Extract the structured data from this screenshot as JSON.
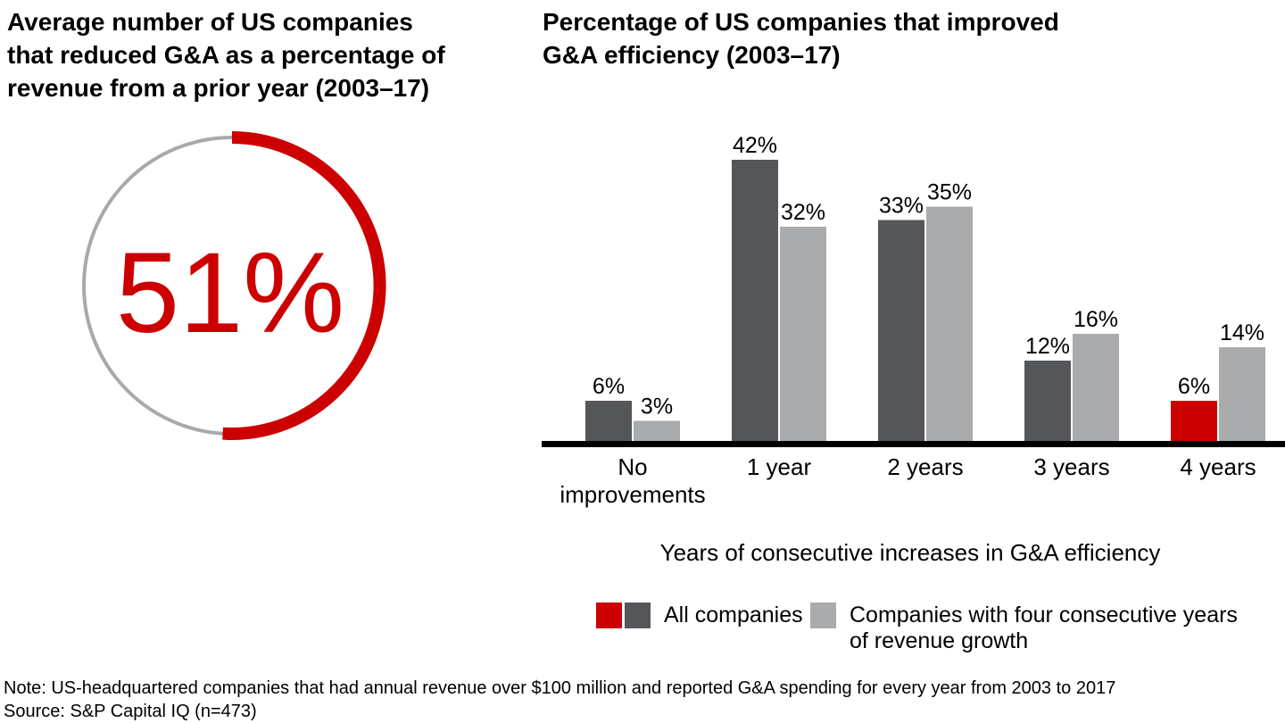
{
  "colors": {
    "red": "#CC0000",
    "dark_gray": "#55565A",
    "light_gray": "#A9ABAD",
    "circle_track_gray": "#A7A9AC",
    "axis_black": "#000000"
  },
  "left_panel": {
    "title": "Average number of US companies\nthat reduced G&A as a percentage of\nrevenue from a prior year (2003–17)",
    "donut_value_label": "51%"
  },
  "right_panel": {
    "title": "Percentage of US companies that improved\nG&A efficiency (2003–17)",
    "xlabel": "Years of consecutive increases in G&A efficiency"
  },
  "legend": {
    "items": [
      {
        "label": "All companies",
        "swatch_colors": [
          "#CC0000",
          "#55565A"
        ]
      },
      {
        "label": "Companies with four consecutive years\nof revenue growth",
        "swatch_colors": [
          "#A9ABAD"
        ]
      }
    ]
  },
  "footer": {
    "note": "Note: US-headquartered companies that had annual revenue over $100 million and reported G&A spending for every year from 2003 to 2017",
    "source": "Source: S&P Capital IQ (n=473)"
  },
  "chart_data": [
    {
      "type": "donut",
      "title": "Average number of US companies that reduced G&A as a percentage of revenue from a prior year (2003–17)",
      "value_percent": 51,
      "value_label": "51%",
      "filled_color": "#CC0000",
      "track_color": "#A7A9AC"
    },
    {
      "type": "bar",
      "title": "Percentage of US companies that improved G&A efficiency (2003–17)",
      "categories": [
        "No improvements",
        "1 year",
        "2 years",
        "3 years",
        "4 years"
      ],
      "series": [
        {
          "name": "All companies",
          "values": [
            6,
            42,
            33,
            12,
            6
          ]
        },
        {
          "name": "Companies with four consecutive years of revenue growth",
          "values": [
            3,
            32,
            35,
            16,
            14
          ]
        }
      ],
      "data_labels": [
        [
          "6%",
          "42%",
          "33%",
          "12%",
          "6%"
        ],
        [
          "3%",
          "32%",
          "35%",
          "16%",
          "14%"
        ]
      ],
      "highlight": {
        "series": 0,
        "index": 4,
        "color": "#CC0000"
      },
      "xlabel": "Years of consecutive increases in G&A efficiency",
      "ylabel": "",
      "ylim": [
        0,
        45
      ],
      "grid": false,
      "legend_position": "bottom"
    }
  ]
}
